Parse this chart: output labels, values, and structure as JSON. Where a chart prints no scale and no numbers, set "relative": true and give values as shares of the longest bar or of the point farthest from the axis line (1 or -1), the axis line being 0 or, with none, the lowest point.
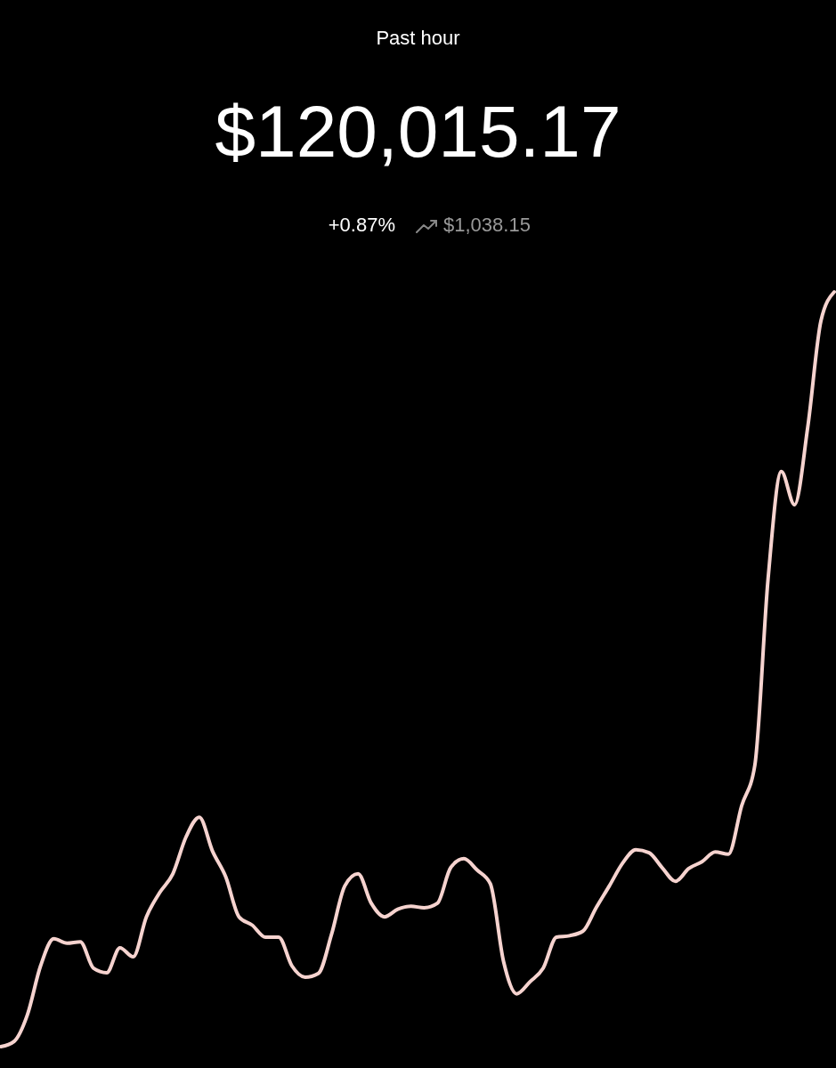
{
  "chart_data": {
    "type": "line",
    "title": "$120,015.17",
    "subtitle": "Past hour",
    "annotations": [
      "+0.87%",
      "$1,038.15"
    ],
    "relative": true,
    "categories": [
      null,
      null,
      null,
      null,
      null,
      null,
      null,
      null,
      null,
      null,
      null,
      null,
      null,
      null,
      null,
      null,
      null,
      null,
      null,
      null,
      null,
      null,
      null,
      null,
      null,
      null,
      null,
      null,
      null,
      null,
      null,
      null,
      null,
      null,
      null,
      null,
      null,
      null,
      null,
      null,
      null,
      null,
      null,
      null,
      null,
      null,
      null,
      null,
      null,
      null,
      null,
      null,
      null,
      null,
      null,
      null,
      null,
      null,
      null,
      null,
      null,
      null,
      null,
      null
    ],
    "series": [
      {
        "color": "#f6d3cf",
        "values": [
          0,
          0.007,
          0.042,
          0.107,
          0.143,
          0.137,
          0.139,
          0.104,
          0.098,
          0.131,
          0.119,
          0.172,
          0.204,
          0.229,
          0.278,
          0.304,
          0.259,
          0.225,
          0.172,
          0.161,
          0.145,
          0.145,
          0.107,
          0.092,
          0.097,
          0.149,
          0.213,
          0.229,
          0.19,
          0.172,
          0.182,
          0.186,
          0.184,
          0.19,
          0.237,
          0.249,
          0.234,
          0.216,
          0.113,
          0.07,
          0.086,
          0.104,
          0.145,
          0.147,
          0.153,
          0.184,
          0.213,
          0.243,
          0.261,
          0.257,
          0.237,
          0.219,
          0.236,
          0.245,
          0.258,
          0.255,
          0.319,
          0.373,
          0.62,
          0.762,
          0.718,
          0.821,
          0.962,
          1
        ]
      }
    ],
    "grid": false,
    "marker": "none",
    "line_style": "solid"
  }
}
